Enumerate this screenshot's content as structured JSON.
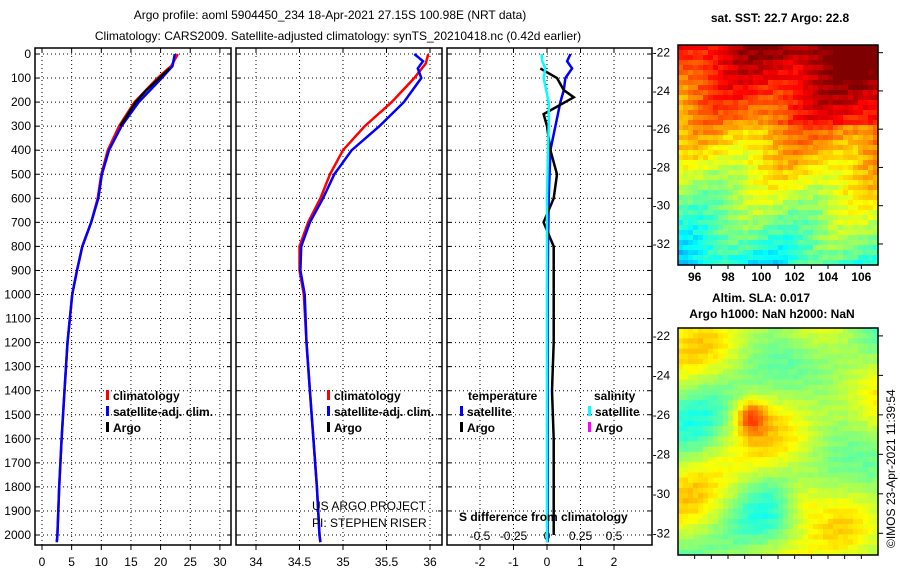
{
  "title_line1": "Argo profile: aoml 5904450_234 18-Apr-2021 27.15S 100.98E (NRT data)",
  "title_line2": "Climatology: CARS2009. Satellite-adjusted climatology: synTS_20210418.nc (0.42d earlier)",
  "credit": "US ARGO PROJECT",
  "pi": "PI: STEPHEN RISER",
  "copyright": "©IMOS 23-Apr-2021 11:39:54",
  "colors": {
    "climatology": "#ff0000",
    "satellite": "#0000ff",
    "argo": "#000000",
    "sal_satellite": "#00ffff",
    "sal_argo": "#ff00ff"
  },
  "chart_data": [
    {
      "type": "line",
      "name": "temperature",
      "ylim": [
        2050,
        0
      ],
      "xlim": [
        -1,
        31
      ],
      "yticks": [
        0,
        100,
        200,
        300,
        400,
        500,
        600,
        700,
        800,
        900,
        1000,
        1100,
        1200,
        1300,
        1400,
        1500,
        1600,
        1700,
        1800,
        1900,
        2000
      ],
      "xticks": [
        0,
        5,
        10,
        15,
        20,
        25,
        30
      ],
      "legend": [
        "climatology",
        "satellite-adj. clim.",
        "Argo"
      ],
      "series": [
        {
          "name": "climatology",
          "depth": [
            0,
            50,
            100,
            200,
            300,
            400,
            500,
            600,
            700,
            800,
            900,
            1000,
            1200,
            1400,
            1600,
            1800,
            2000,
            2030
          ],
          "values": [
            22.9,
            21.8,
            19.5,
            15.6,
            13,
            11.1,
            10,
            9.4,
            8.3,
            6.8,
            5.9,
            5.1,
            4.3,
            3.8,
            3.3,
            2.9,
            2.6,
            2.5
          ]
        },
        {
          "name": "satellite-adj. clim.",
          "depth": [
            0,
            50,
            100,
            200,
            300,
            400,
            500,
            600,
            700,
            800,
            900,
            1000,
            1200,
            1400,
            1600,
            1800,
            2000,
            2030
          ],
          "values": [
            22.4,
            22,
            20.2,
            16.3,
            13.4,
            11.3,
            10.1,
            9.5,
            8.3,
            6.8,
            5.9,
            5.1,
            4.3,
            3.8,
            3.3,
            2.9,
            2.6,
            2.5
          ]
        },
        {
          "name": "Argo",
          "depth": [
            60,
            100,
            150,
            200,
            250,
            300
          ],
          "values": [
            21.5,
            19.8,
            17.6,
            15.8,
            14.5,
            13.2
          ]
        }
      ]
    },
    {
      "type": "line",
      "name": "salinity",
      "ylim": [
        2050,
        0
      ],
      "xlim": [
        33.8,
        36.1
      ],
      "xticks": [
        34,
        34.5,
        35,
        35.5,
        36
      ],
      "legend": [
        "climatology",
        "satellite-adj. clim.",
        "Argo"
      ],
      "series": [
        {
          "name": "climatology",
          "depth": [
            0,
            40,
            100,
            200,
            300,
            400,
            500,
            600,
            700,
            800,
            900,
            1000,
            1200,
            1400,
            1600,
            1800,
            2000,
            2030
          ],
          "values": [
            35.98,
            35.95,
            35.82,
            35.56,
            35.25,
            35.0,
            34.85,
            34.74,
            34.6,
            34.5,
            34.5,
            34.55,
            34.58,
            34.62,
            34.66,
            34.7,
            34.73,
            34.74
          ]
        },
        {
          "name": "satellite-adj. clim.",
          "depth": [
            0,
            30,
            60,
            100,
            200,
            300,
            400,
            500,
            600,
            700,
            800,
            900,
            1000,
            1200,
            1400,
            1600,
            1800,
            2000,
            2030
          ],
          "values": [
            35.82,
            35.92,
            35.86,
            35.9,
            35.7,
            35.42,
            35.1,
            34.9,
            34.77,
            34.62,
            34.52,
            34.51,
            34.56,
            34.58,
            34.62,
            34.66,
            34.7,
            34.73,
            34.74
          ]
        }
      ]
    },
    {
      "type": "line",
      "name": "difference",
      "ylim": [
        2050,
        0
      ],
      "xlim": [
        -3,
        3
      ],
      "xticks": [
        -2,
        -1,
        0,
        1,
        2
      ],
      "top_xticks": [
        -0.5,
        -0.25,
        0,
        0.25,
        0.5
      ],
      "xlabel_top": "S difference from climatology",
      "legend_temperature": {
        "title": "temperature",
        "items": [
          "satellite",
          "Argo"
        ]
      },
      "legend_salinity": {
        "title": "salinity",
        "items": [
          "satellite",
          "Argo"
        ]
      },
      "series": [
        {
          "name": "temperature satellite",
          "depth": [
            0,
            30,
            60,
            100,
            150,
            200,
            300,
            400,
            600,
            800,
            1000,
            1500,
            2030
          ],
          "values": [
            0.7,
            0.6,
            0.75,
            0.55,
            0.5,
            0.4,
            0.25,
            0.1,
            0.05,
            0.03,
            0.02,
            0.02,
            0.02
          ]
        },
        {
          "name": "temperature Argo",
          "depth": [
            60,
            100,
            150,
            180,
            250,
            300,
            400,
            500,
            600,
            700,
            800,
            1200,
            1400,
            1600,
            2000
          ],
          "values": [
            -0.2,
            0.3,
            0.5,
            0.8,
            -0.1,
            0.0,
            0.1,
            0.3,
            0.2,
            -0.1,
            0.2,
            0.2,
            0.15,
            0.2,
            0.2
          ]
        },
        {
          "name": "salinity satellite",
          "depth": [
            0,
            30,
            60,
            100,
            200,
            300,
            400,
            600,
            800,
            1000,
            1500,
            2030
          ],
          "values": [
            -0.16,
            -0.14,
            -0.05,
            -0.1,
            0.05,
            0.05,
            0.03,
            0.0,
            0.0,
            0.0,
            0.0,
            0.0
          ]
        }
      ]
    },
    {
      "type": "heatmap",
      "name": "sst_map",
      "title": "sat. SST: 22.7 Argo: 22.8",
      "xticks": [
        96,
        98,
        100,
        102,
        104,
        106
      ],
      "yticks": [
        -22,
        -24,
        -26,
        -28,
        -30,
        -32
      ],
      "xlim": [
        95,
        107
      ],
      "ylim": [
        -33.1,
        -21.6
      ]
    },
    {
      "type": "heatmap",
      "name": "sla_map",
      "title_line1": "Altim. SLA: 0.017",
      "title_line2": "Argo h1000: NaN h2000: NaN",
      "yticks": [
        -22,
        -24,
        -26,
        -28,
        -30,
        -32
      ],
      "xlim": [
        95,
        107
      ],
      "ylim": [
        -33.1,
        -21.6
      ]
    }
  ]
}
